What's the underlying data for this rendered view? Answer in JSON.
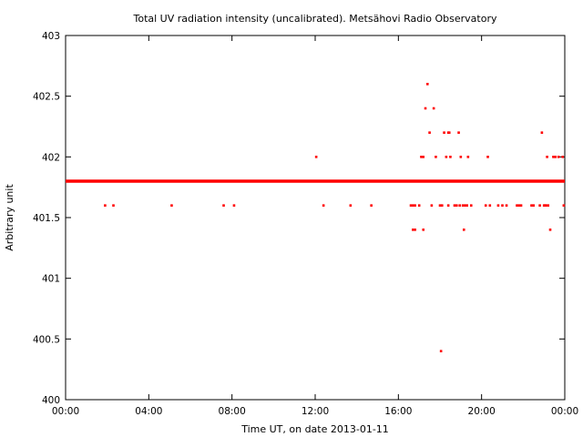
{
  "chart_data": {
    "type": "scatter",
    "title": "Total UV radiation intensity (uncalibrated). Metsähovi Radio Observatory",
    "xlabel": "Time UT, on date 2013-01-11",
    "ylabel": "Arbitrary unit",
    "xlim": [
      0,
      24
    ],
    "ylim": [
      400,
      403
    ],
    "x_ticks": [
      {
        "value": 0,
        "label": "00:00"
      },
      {
        "value": 4,
        "label": "04:00"
      },
      {
        "value": 8,
        "label": "08:00"
      },
      {
        "value": 12,
        "label": "12:00"
      },
      {
        "value": 16,
        "label": "16:00"
      },
      {
        "value": 20,
        "label": "20:00"
      },
      {
        "value": 24,
        "label": "00:00"
      }
    ],
    "y_ticks": [
      {
        "value": 400,
        "label": "400"
      },
      {
        "value": 400.5,
        "label": "400.5"
      },
      {
        "value": 401,
        "label": "401"
      },
      {
        "value": 401.5,
        "label": "401.5"
      },
      {
        "value": 402,
        "label": "402"
      },
      {
        "value": 402.5,
        "label": "402.5"
      },
      {
        "value": 403,
        "label": "403"
      }
    ],
    "grid": false,
    "legend": "none",
    "marker_color": "#ff0000",
    "baseline": {
      "y": 401.8,
      "x_start": 0,
      "x_end": 24
    },
    "points": [
      {
        "x": 1.9,
        "y": 401.6
      },
      {
        "x": 2.3,
        "y": 401.6
      },
      {
        "x": 5.1,
        "y": 401.6
      },
      {
        "x": 7.6,
        "y": 401.6
      },
      {
        "x": 8.1,
        "y": 401.6
      },
      {
        "x": 12.05,
        "y": 402.0
      },
      {
        "x": 12.4,
        "y": 401.6
      },
      {
        "x": 13.7,
        "y": 401.6
      },
      {
        "x": 14.7,
        "y": 401.6
      },
      {
        "x": 16.6,
        "y": 401.6
      },
      {
        "x": 16.7,
        "y": 401.6
      },
      {
        "x": 16.8,
        "y": 401.6
      },
      {
        "x": 16.7,
        "y": 401.4
      },
      {
        "x": 16.8,
        "y": 401.4
      },
      {
        "x": 17.0,
        "y": 401.6
      },
      {
        "x": 17.1,
        "y": 402.0
      },
      {
        "x": 17.2,
        "y": 402.0
      },
      {
        "x": 17.2,
        "y": 401.4
      },
      {
        "x": 17.3,
        "y": 402.4
      },
      {
        "x": 17.4,
        "y": 402.6
      },
      {
        "x": 17.5,
        "y": 402.2
      },
      {
        "x": 17.6,
        "y": 401.6
      },
      {
        "x": 17.7,
        "y": 402.4
      },
      {
        "x": 17.8,
        "y": 402.0
      },
      {
        "x": 18.0,
        "y": 401.6
      },
      {
        "x": 18.1,
        "y": 401.6
      },
      {
        "x": 18.05,
        "y": 400.4
      },
      {
        "x": 18.2,
        "y": 402.2
      },
      {
        "x": 18.3,
        "y": 402.0
      },
      {
        "x": 18.4,
        "y": 402.2
      },
      {
        "x": 18.45,
        "y": 402.2
      },
      {
        "x": 18.4,
        "y": 401.6
      },
      {
        "x": 18.5,
        "y": 402.0
      },
      {
        "x": 18.7,
        "y": 401.6
      },
      {
        "x": 18.8,
        "y": 401.6
      },
      {
        "x": 18.9,
        "y": 402.2
      },
      {
        "x": 18.95,
        "y": 401.6
      },
      {
        "x": 19.0,
        "y": 402.0
      },
      {
        "x": 19.1,
        "y": 401.6
      },
      {
        "x": 19.15,
        "y": 401.4
      },
      {
        "x": 19.2,
        "y": 401.6
      },
      {
        "x": 19.3,
        "y": 401.6
      },
      {
        "x": 19.35,
        "y": 402.0
      },
      {
        "x": 19.5,
        "y": 401.6
      },
      {
        "x": 20.2,
        "y": 401.6
      },
      {
        "x": 20.3,
        "y": 402.0
      },
      {
        "x": 20.4,
        "y": 401.6
      },
      {
        "x": 20.8,
        "y": 401.6
      },
      {
        "x": 21.0,
        "y": 401.6
      },
      {
        "x": 21.2,
        "y": 401.6
      },
      {
        "x": 21.7,
        "y": 401.6
      },
      {
        "x": 21.8,
        "y": 401.6
      },
      {
        "x": 21.9,
        "y": 401.6
      },
      {
        "x": 22.4,
        "y": 401.6
      },
      {
        "x": 22.5,
        "y": 401.6
      },
      {
        "x": 22.8,
        "y": 401.6
      },
      {
        "x": 22.9,
        "y": 402.2
      },
      {
        "x": 23.0,
        "y": 401.6
      },
      {
        "x": 23.05,
        "y": 401.6
      },
      {
        "x": 23.1,
        "y": 401.6
      },
      {
        "x": 23.15,
        "y": 402.0
      },
      {
        "x": 23.2,
        "y": 401.6
      },
      {
        "x": 23.3,
        "y": 401.4
      },
      {
        "x": 23.45,
        "y": 402.0
      },
      {
        "x": 23.55,
        "y": 402.0
      },
      {
        "x": 23.7,
        "y": 402.0
      },
      {
        "x": 23.9,
        "y": 402.0
      },
      {
        "x": 23.95,
        "y": 401.6
      }
    ]
  }
}
